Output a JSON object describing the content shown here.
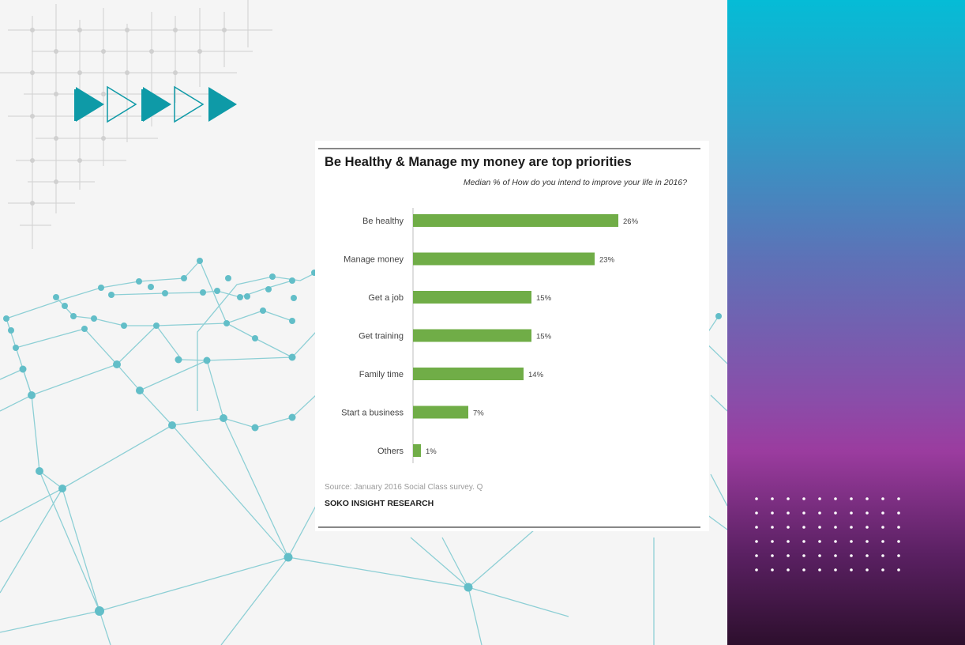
{
  "colors": {
    "accent_teal": "#0e9aa7",
    "network_line": "#7cc9d0",
    "bar_green": "#70ad47",
    "side_top": "#05bcd6",
    "side_mid": "#9b3c9f",
    "side_bottom": "#2d0f2d"
  },
  "decor": {
    "play_icons": [
      "play-solid-icon",
      "play-outline-icon",
      "play-solid-icon",
      "play-outline-icon",
      "play-solid-icon"
    ]
  },
  "chart_data": {
    "type": "bar",
    "orientation": "horizontal",
    "title": "Be Healthy & Manage my money are top priorities",
    "subtitle": "Median % of How do you intend to improve your life in 2016?",
    "categories": [
      "Be healthy",
      "Manage money",
      "Get a job",
      "Get training",
      "Family time",
      "Start a business",
      "Others"
    ],
    "values": [
      26,
      23,
      15,
      15,
      14,
      7,
      1
    ],
    "value_labels": [
      "26%",
      "23%",
      "15%",
      "15%",
      "14%",
      "7%",
      "1%"
    ],
    "xlim": [
      0,
      35
    ],
    "grid": false,
    "legend": "none",
    "source": "Source: January 2016 Social Class survey. Q",
    "brand": "SOKO INSIGHT RESEARCH"
  }
}
